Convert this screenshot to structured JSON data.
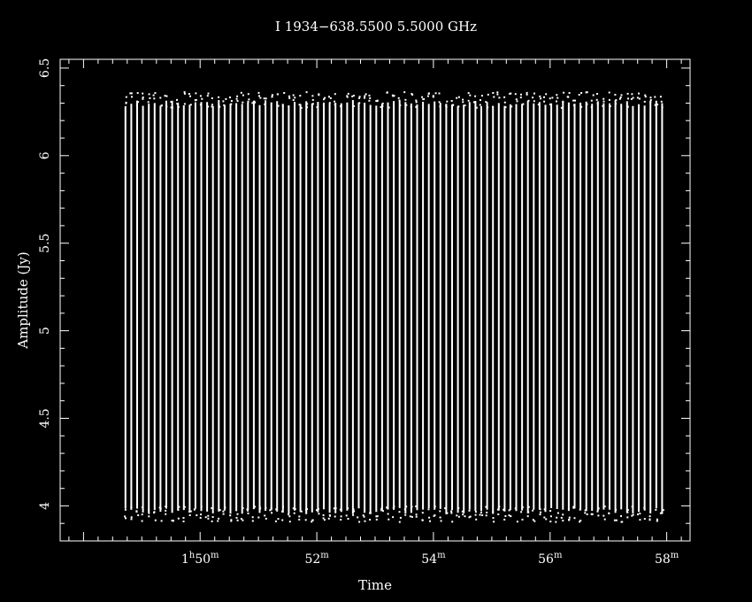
{
  "chart_data": {
    "type": "scatter",
    "title": "I 1934−638.5500 5.5000 GHz",
    "xlabel": "Time",
    "ylabel": "Amplitude (Jy)",
    "x_unit": "minutes after 1h",
    "xlim": [
      47.6,
      58.4
    ],
    "ylim": [
      3.8,
      6.55
    ],
    "x_ticks": [
      {
        "value": 50,
        "hours": "1",
        "minutes": "50"
      },
      {
        "value": 52,
        "hours": "",
        "minutes": "52"
      },
      {
        "value": 54,
        "hours": "",
        "minutes": "54"
      },
      {
        "value": 56,
        "hours": "",
        "minutes": "56"
      },
      {
        "value": 58,
        "hours": "",
        "minutes": "58"
      }
    ],
    "y_ticks": [
      {
        "value": 4,
        "label": "4"
      },
      {
        "value": 4.5,
        "label": "4.5"
      },
      {
        "value": 5,
        "label": "5"
      },
      {
        "value": 5.5,
        "label": "5.5"
      },
      {
        "value": 6,
        "label": "6"
      },
      {
        "value": 6.5,
        "label": "6.5"
      }
    ],
    "scan_start_min": 48.72,
    "scan_step_min": 0.1,
    "scan_count": 93,
    "band_high_center": 6.3,
    "band_low_center": 3.97,
    "band_spread": 0.035,
    "color": "#ffffff",
    "background": "#000000",
    "grid": false,
    "legend": "none"
  }
}
